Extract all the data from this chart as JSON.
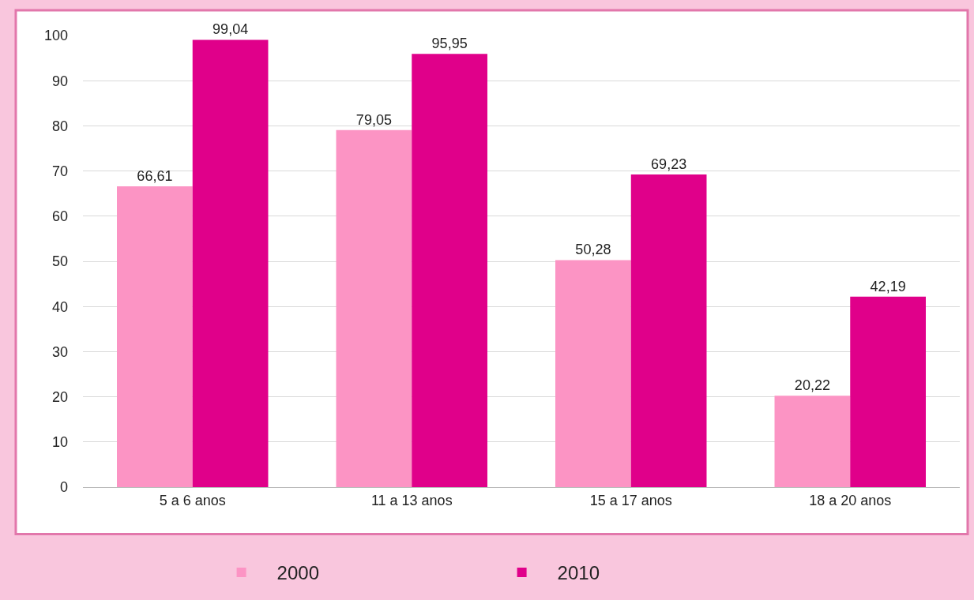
{
  "chart_data": {
    "type": "bar",
    "categories": [
      "5 a 6 anos",
      "11 a 13 anos",
      "15 a 17 anos",
      "18 a 20 anos"
    ],
    "series": [
      {
        "name": "2000",
        "color": "#fc94c4",
        "values": [
          66.61,
          79.05,
          50.28,
          20.22
        ],
        "value_labels": [
          "66,61",
          "79,05",
          "50,28",
          "20,22"
        ]
      },
      {
        "name": "2010",
        "color": "#e0008a",
        "values": [
          99.04,
          95.95,
          69.23,
          42.19
        ],
        "value_labels": [
          "99,04",
          "95,95",
          "69,23",
          "42,19"
        ]
      }
    ],
    "ylim": [
      0,
      100
    ],
    "yticks": [
      0,
      10,
      20,
      30,
      40,
      50,
      60,
      70,
      80,
      90,
      100
    ],
    "grid": "y",
    "legend": "bottom"
  }
}
